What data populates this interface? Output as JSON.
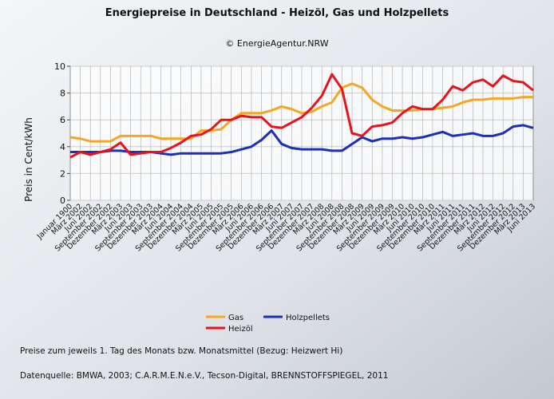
{
  "chart_data": {
    "type": "line",
    "title": "Energiepreise in Deutschland - Heizöl, Gas und Holzpellets",
    "subtitle": "© EnergieAgentur.NRW",
    "y_label": "Preis in Cent/kWh",
    "categories": [
      "Januar 1900",
      "März 2002",
      "Juni 2002",
      "September 2002",
      "Dezember 2002",
      "März 2003",
      "Juni 2003",
      "September 2003",
      "Dezember 2003",
      "März 2004",
      "Juni 2004",
      "September 2004",
      "Dezember 2004",
      "März 2005",
      "Juni 2005",
      "September 2005",
      "Dezember 2005",
      "März 2006",
      "Juni 2006",
      "September 2006",
      "Dezember 2006",
      "März 2007",
      "Juni 2007",
      "September 2007",
      "Dezember 2007",
      "März 2008",
      "Juni 2008",
      "September 2008",
      "Dezember 2008",
      "März 2009",
      "Juni 2009",
      "September 2009",
      "Dezember 2009",
      "März 2010",
      "Juni 2010",
      "September 2010",
      "Dezember 2010",
      "März 2011",
      "Juni 2011",
      "September 2011",
      "Dezember 2011",
      "März 2012",
      "Juni 2012",
      "September 2012",
      "Dezember 2012",
      "März 2013",
      "Juni 2013"
    ],
    "series": [
      {
        "name": "Gas",
        "color": "#f5a623",
        "values": [
          4.7,
          4.6,
          4.4,
          4.4,
          4.4,
          4.8,
          4.8,
          4.8,
          4.8,
          4.6,
          4.6,
          4.6,
          4.6,
          5.2,
          5.2,
          5.3,
          6.0,
          6.5,
          6.5,
          6.5,
          6.7,
          7.0,
          6.8,
          6.5,
          6.6,
          7.0,
          7.3,
          8.4,
          8.7,
          8.4,
          7.5,
          7.0,
          6.7,
          6.7,
          6.7,
          6.8,
          6.8,
          6.9,
          7.0,
          7.3,
          7.5,
          7.5,
          7.6,
          7.6,
          7.6,
          7.7,
          7.7
        ]
      },
      {
        "name": "Holzpellets",
        "color": "#1c2fb8",
        "values": [
          3.6,
          3.6,
          3.6,
          3.6,
          3.7,
          3.7,
          3.6,
          3.6,
          3.6,
          3.5,
          3.4,
          3.5,
          3.5,
          3.5,
          3.5,
          3.5,
          3.6,
          3.8,
          4.0,
          4.5,
          5.2,
          4.2,
          3.9,
          3.8,
          3.8,
          3.8,
          3.7,
          3.7,
          4.2,
          4.7,
          4.4,
          4.6,
          4.6,
          4.7,
          4.6,
          4.7,
          4.9,
          5.1,
          4.8,
          4.9,
          5.0,
          4.8,
          4.8,
          5.0,
          5.5,
          5.6,
          5.4
        ]
      },
      {
        "name": "Heizöl",
        "color": "#e8141c",
        "values": [
          3.2,
          3.6,
          3.4,
          3.6,
          3.8,
          4.3,
          3.4,
          3.5,
          3.6,
          3.6,
          3.9,
          4.3,
          4.8,
          4.9,
          5.3,
          6.0,
          6.0,
          6.3,
          6.2,
          6.2,
          5.5,
          5.4,
          5.8,
          6.2,
          6.9,
          7.8,
          9.4,
          8.3,
          5.0,
          4.8,
          5.5,
          5.6,
          5.8,
          6.5,
          7.0,
          6.8,
          6.8,
          7.5,
          8.5,
          8.2,
          8.8,
          9.0,
          8.5,
          9.3,
          8.9,
          8.8,
          8.2
        ]
      }
    ],
    "ylim": [
      0,
      10
    ],
    "yticks": [
      0,
      2,
      4,
      6,
      8,
      10
    ],
    "grid": true,
    "notes": [
      "Preise zum jeweils 1. Tag des Monats bzw. Monatsmittel (Bezug: Heizwert Hi)",
      "Datenquelle: BMWA, 2003; C.A.R.M.E.N.e.V.,   Tecson-Digital, BRENNSTOFFSPIEGEL, 2011"
    ]
  }
}
